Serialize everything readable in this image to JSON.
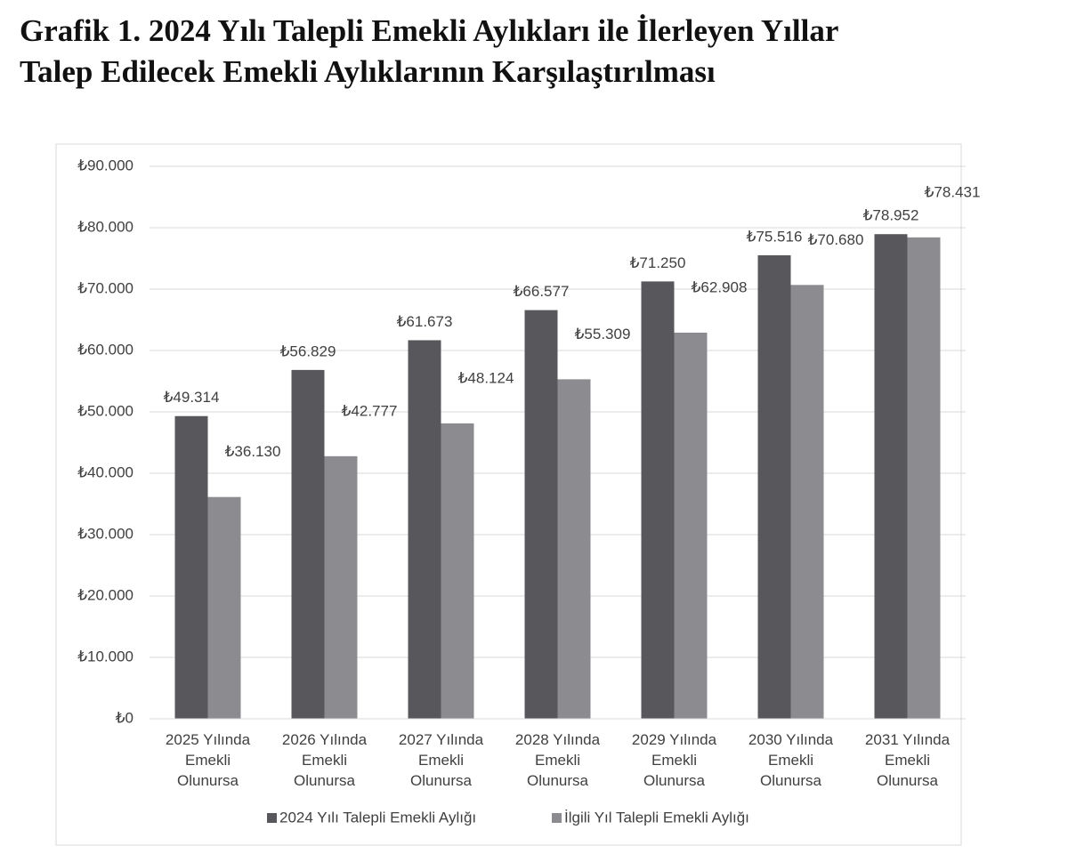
{
  "chart_data": {
    "type": "bar",
    "title": [
      "Grafik 1. 2024 Yılı Talepli Emekli Aylıkları ile İlerleyen Yıllar",
      "Talep Edilecek Emekli Aylıklarının Karşılaştırılması"
    ],
    "categories": [
      [
        "2025 Yılında",
        "Emekli",
        "Olunursa"
      ],
      [
        "2026 Yılında",
        "Emekli",
        "Olunursa"
      ],
      [
        "2027 Yılında",
        "Emekli",
        "Olunursa"
      ],
      [
        "2028 Yılında",
        "Emekli",
        "Olunursa"
      ],
      [
        "2029 Yılında",
        "Emekli",
        "Olunursa"
      ],
      [
        "2030 Yılında",
        "Emekli",
        "Olunursa"
      ],
      [
        "2031 Yılında",
        "Emekli",
        "Olunursa"
      ]
    ],
    "series": [
      {
        "name": "2024 Yılı Talepli Emekli Aylığı",
        "color": "#58575b",
        "values": [
          49314,
          56829,
          61673,
          66577,
          71250,
          75516,
          78952
        ],
        "value_labels": [
          "₺49.314",
          "₺56.829",
          "₺61.673",
          "₺66.577",
          "₺71.250",
          "₺75.516",
          "₺78.952"
        ]
      },
      {
        "name": "İlgili Yıl Talepli Emekli Aylığı",
        "color": "#8c8c90",
        "values": [
          36130,
          42777,
          48124,
          55309,
          62908,
          70680,
          78431
        ],
        "value_labels": [
          "₺36.130",
          "₺42.777",
          "₺48.124",
          "₺55.309",
          "₺62.908",
          "₺70.680",
          "₺78.431"
        ]
      }
    ],
    "ylim": [
      0,
      90000
    ],
    "yticks": [
      {
        "value": 0,
        "label": "₺0"
      },
      {
        "value": 10000,
        "label": "₺10.000"
      },
      {
        "value": 20000,
        "label": "₺20.000"
      },
      {
        "value": 30000,
        "label": "₺30.000"
      },
      {
        "value": 40000,
        "label": "₺40.000"
      },
      {
        "value": 50000,
        "label": "₺50.000"
      },
      {
        "value": 60000,
        "label": "₺60.000"
      },
      {
        "value": 70000,
        "label": "₺70.000"
      },
      {
        "value": 80000,
        "label": "₺80.000"
      },
      {
        "value": 90000,
        "label": "₺90.000"
      }
    ],
    "grid": true,
    "legend": "bottom"
  }
}
